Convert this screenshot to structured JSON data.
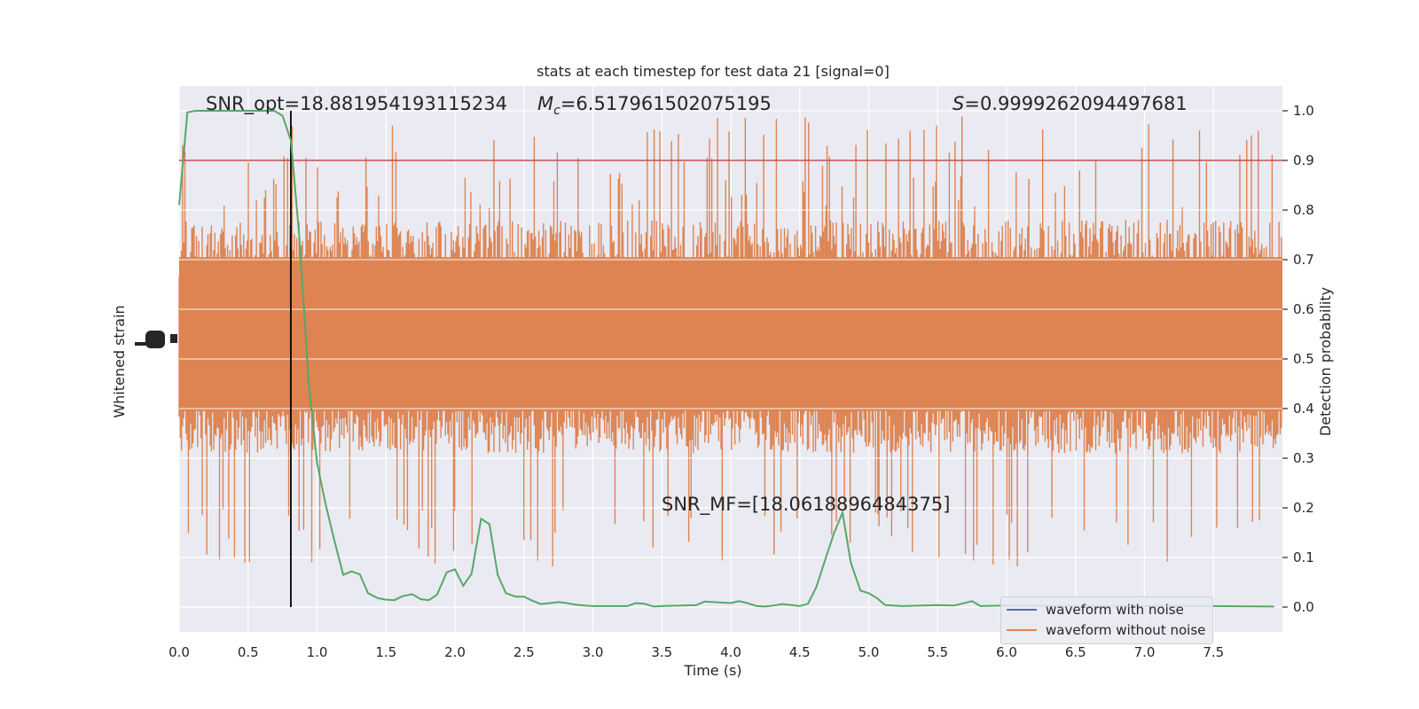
{
  "chart_data": {
    "type": "line",
    "title": "stats at each timestep for test data 21 [signal=0]",
    "xlabel": "Time (s)",
    "ylabel_left": "Whitened strain",
    "ylabel_right": "Detection probability",
    "xlim": [
      0.0,
      8.0
    ],
    "ylim_right": [
      -0.05,
      1.05
    ],
    "x_ticks": [
      "0.0",
      "0.5",
      "1.0",
      "1.5",
      "2.0",
      "2.5",
      "3.0",
      "3.5",
      "4.0",
      "4.5",
      "5.0",
      "5.5",
      "6.0",
      "6.5",
      "7.0",
      "7.5"
    ],
    "y_ticks_right": [
      "0.0",
      "0.1",
      "0.2",
      "0.3",
      "0.4",
      "0.5",
      "0.6",
      "0.7",
      "0.8",
      "0.9",
      "1.0"
    ],
    "grid": true,
    "legend_position": "lower-right",
    "annotations": {
      "snr_opt": "SNR_opt=18.881954193115234",
      "mc_symbol": "M",
      "mc_subscript": "c",
      "mc_value": "=6.517961502075195",
      "s_symbol": "S",
      "s_value": "=0.9999262094497681",
      "snr_mf": "SNR_MF=[18.0618896484375]"
    },
    "threshold": {
      "value": 0.9,
      "color": "#c44e52"
    },
    "marker_time": 0.81,
    "series": [
      {
        "name": "waveform with noise",
        "color": "#4c72b0",
        "kind": "strain"
      },
      {
        "name": "waveform without noise",
        "color": "#dd8452",
        "kind": "strain"
      },
      {
        "name": "",
        "color": "#55a868",
        "kind": "probability",
        "x": [
          0.0,
          0.06,
          0.12,
          0.19,
          0.25,
          0.31,
          0.37,
          0.44,
          0.5,
          0.56,
          0.62,
          0.69,
          0.75,
          0.81,
          0.87,
          0.94,
          1.0,
          1.06,
          1.12,
          1.19,
          1.25,
          1.31,
          1.37,
          1.44,
          1.5,
          1.56,
          1.62,
          1.69,
          1.75,
          1.81,
          1.87,
          1.94,
          2.0,
          2.06,
          2.12,
          2.19,
          2.25,
          2.31,
          2.37,
          2.44,
          2.5,
          2.56,
          2.62,
          2.69,
          2.75,
          2.81,
          2.87,
          2.94,
          3.0,
          3.25,
          3.31,
          3.37,
          3.44,
          3.5,
          3.75,
          3.81,
          4.0,
          4.06,
          4.12,
          4.19,
          4.25,
          4.31,
          4.37,
          4.44,
          4.5,
          4.56,
          4.62,
          4.69,
          4.75,
          4.81,
          4.87,
          4.94,
          5.0,
          5.06,
          5.12,
          5.25,
          5.5,
          5.62,
          5.75,
          5.81,
          6.0,
          6.5,
          7.0,
          7.5,
          7.94
        ],
        "y": [
          0.81,
          0.997,
          1.0,
          1.0,
          1.0,
          1.0,
          1.0,
          1.0,
          1.0,
          1.0,
          1.0,
          1.0,
          0.99,
          0.94,
          0.75,
          0.45,
          0.29,
          0.21,
          0.14,
          0.065,
          0.072,
          0.066,
          0.028,
          0.018,
          0.015,
          0.014,
          0.022,
          0.026,
          0.016,
          0.014,
          0.025,
          0.07,
          0.076,
          0.043,
          0.067,
          0.178,
          0.167,
          0.065,
          0.028,
          0.021,
          0.021,
          0.013,
          0.006,
          0.008,
          0.01,
          0.008,
          0.005,
          0.003,
          0.002,
          0.002,
          0.008,
          0.007,
          0.001,
          0.002,
          0.004,
          0.011,
          0.008,
          0.012,
          0.008,
          0.002,
          0.001,
          0.003,
          0.006,
          0.004,
          0.002,
          0.007,
          0.04,
          0.1,
          0.15,
          0.19,
          0.09,
          0.033,
          0.028,
          0.018,
          0.004,
          0.002,
          0.004,
          0.003,
          0.012,
          0.002,
          0.003,
          0.002,
          0.002,
          0.002,
          0.001
        ]
      }
    ]
  }
}
